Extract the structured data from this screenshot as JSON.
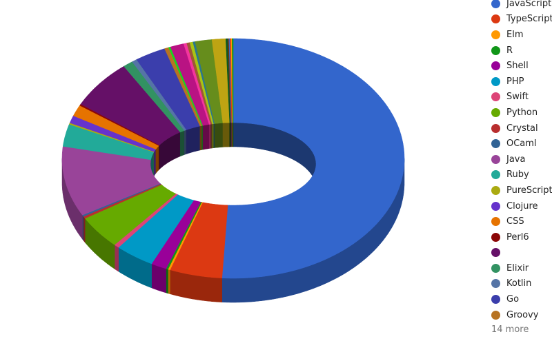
{
  "chart_data": {
    "type": "pie",
    "style": "3d-donut",
    "legend_position": "right",
    "legend_more_label": "14 more",
    "slices": [
      {
        "label": "JavaScript",
        "value": 51.3,
        "color": "#3366cc"
      },
      {
        "label": "TypeScript",
        "value": 5.0,
        "color": "#dc3912"
      },
      {
        "label": "Elm",
        "value": 0.2,
        "color": "#ff9900"
      },
      {
        "label": "R",
        "value": 0.2,
        "color": "#109618"
      },
      {
        "label": "Shell",
        "value": 1.5,
        "color": "#990099"
      },
      {
        "label": "PHP",
        "value": 3.8,
        "color": "#0099c6"
      },
      {
        "label": "Swift",
        "value": 0.5,
        "color": "#dd4477"
      },
      {
        "label": "Python",
        "value": 4.5,
        "color": "#66aa00"
      },
      {
        "label": "Crystal",
        "value": 0.3,
        "color": "#b82e2e"
      },
      {
        "label": "OCaml",
        "value": 0.2,
        "color": "#316395"
      },
      {
        "label": "Java",
        "value": 9.5,
        "color": "#994499"
      },
      {
        "label": "Ruby",
        "value": 3.0,
        "color": "#22aa99"
      },
      {
        "label": "PureScript",
        "value": 0.2,
        "color": "#aaaa11"
      },
      {
        "label": "Clojure",
        "value": 1.0,
        "color": "#6633cc"
      },
      {
        "label": "CSS",
        "value": 1.5,
        "color": "#e67300"
      },
      {
        "label": "Perl6",
        "value": 0.2,
        "color": "#8b0707"
      },
      {
        "label": "",
        "value": 6.5,
        "color": "#651067"
      },
      {
        "label": "Elixir",
        "value": 1.0,
        "color": "#329262"
      },
      {
        "label": "Kotlin",
        "value": 0.5,
        "color": "#5574a6"
      },
      {
        "label": "Go",
        "value": 3.0,
        "color": "#3b3eac"
      },
      {
        "label": "Groovy",
        "value": 0.4,
        "color": "#b77322"
      },
      {
        "value": 0.2,
        "color": "#16d620"
      },
      {
        "value": 1.3,
        "color": "#b91383"
      },
      {
        "value": 0.3,
        "color": "#f4359e"
      },
      {
        "value": 0.3,
        "color": "#9c5935"
      },
      {
        "value": 0.3,
        "color": "#a9c413"
      },
      {
        "value": 0.2,
        "color": "#2a778d"
      },
      {
        "value": 1.6,
        "color": "#668d1c"
      },
      {
        "value": 1.3,
        "color": "#bea413"
      },
      {
        "value": 0.2,
        "color": "#0c5922"
      },
      {
        "value": 0.1,
        "color": "#743411"
      },
      {
        "value": 0.1,
        "color": "#3366cc"
      },
      {
        "value": 0.1,
        "color": "#dc3912"
      },
      {
        "value": 0.1,
        "color": "#ff9900"
      },
      {
        "value": 0.1,
        "color": "#109618"
      }
    ]
  }
}
